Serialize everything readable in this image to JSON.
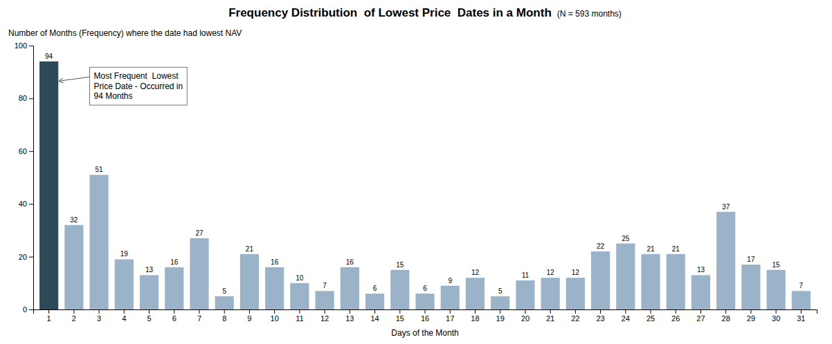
{
  "chart_data": {
    "type": "bar",
    "title": "Frequency Distribution  of Lowest Price  Dates in a Month",
    "subtitle": "(N = 593 months)",
    "x_label": "Days of the Month",
    "y_label": "Number of Months (Frequency) where the date had lowest NAV",
    "categories": [
      "1",
      "2",
      "3",
      "4",
      "5",
      "6",
      "7",
      "8",
      "9",
      "10",
      "11",
      "12",
      "13",
      "14",
      "15",
      "16",
      "17",
      "18",
      "19",
      "20",
      "21",
      "22",
      "23",
      "24",
      "25",
      "26",
      "27",
      "28",
      "29",
      "30",
      "31"
    ],
    "values": [
      94,
      32,
      51,
      19,
      13,
      16,
      27,
      5,
      21,
      16,
      10,
      7,
      16,
      6,
      15,
      6,
      9,
      12,
      5,
      11,
      12,
      12,
      22,
      25,
      21,
      21,
      13,
      37,
      17,
      15,
      7
    ],
    "colors": [
      "#2c4a5a",
      "#9ab3c8",
      "#9ab3c8",
      "#9ab3c8",
      "#9ab3c8",
      "#9ab3c8",
      "#9ab3c8",
      "#9ab3c8",
      "#9ab3c8",
      "#9ab3c8",
      "#9ab3c8",
      "#9ab3c8",
      "#9ab3c8",
      "#9ab3c8",
      "#9ab3c8",
      "#9ab3c8",
      "#9ab3c8",
      "#9ab3c8",
      "#9ab3c8",
      "#9ab3c8",
      "#9ab3c8",
      "#9ab3c8",
      "#9ab3c8",
      "#9ab3c8",
      "#9ab3c8",
      "#9ab3c8",
      "#9ab3c8",
      "#9ab3c8",
      "#9ab3c8",
      "#9ab3c8",
      "#9ab3c8"
    ],
    "ylim": [
      0,
      100
    ],
    "yticks": [
      0,
      20,
      40,
      60,
      80,
      100
    ],
    "grid": false,
    "data_labels": true,
    "annotation": "Most Frequent  Lowest\nPrice Date - Occurred in\n94 Months"
  }
}
